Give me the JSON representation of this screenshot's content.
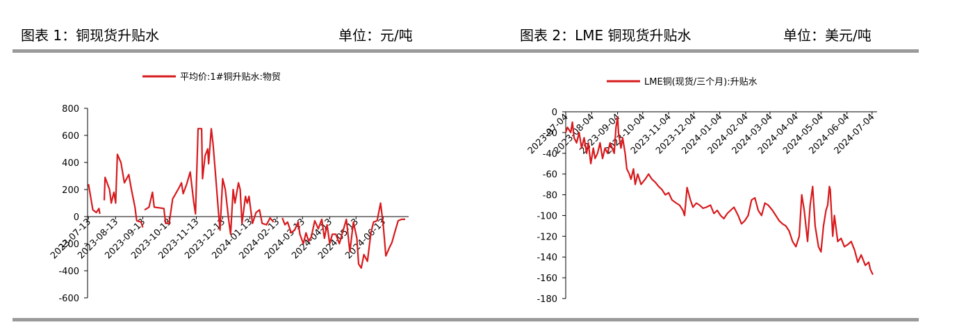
{
  "chart_data": [
    {
      "type": "line",
      "title": "图表 1：铜现货升贴水",
      "unit": "单位：元/吨",
      "legend": "top",
      "xlim": [
        "2023-07-12",
        "2024-07-12"
      ],
      "xticks": [
        "2023-07-13",
        "2023-08-13",
        "2023-09-13",
        "2023-10-13",
        "2023-11-13",
        "2023-12-13",
        "2024-01-13",
        "2024-02-13",
        "2024-03-13",
        "2024-04-13",
        "2024-05-13",
        "2024-06-13"
      ],
      "ylim": [
        -600,
        800
      ],
      "yticks": [
        800,
        600,
        400,
        200,
        0,
        -200,
        -400,
        -600
      ],
      "x": [
        "2023-07-13",
        "2023-07-18",
        "2023-07-22",
        "2023-07-25",
        "2023-07-26",
        "2023-07-28",
        "2023-07-31",
        "2023-08-01",
        "2023-08-06",
        "2023-08-08",
        "2023-08-11",
        "2023-08-13",
        "2023-08-15",
        "2023-08-19",
        "2023-08-23",
        "2023-08-28",
        "2023-08-31",
        "2023-09-04",
        "2023-09-06",
        "2023-09-11",
        "2023-09-13",
        "2023-09-14",
        "2023-09-15",
        "2023-09-20",
        "2023-09-24",
        "2023-09-26",
        "2023-10-07",
        "2023-10-09",
        "2023-10-13",
        "2023-10-17",
        "2023-10-24",
        "2023-10-27",
        "2023-10-29",
        "2023-11-02",
        "2023-11-06",
        "2023-11-10",
        "2023-11-12",
        "2023-11-15",
        "2023-11-19",
        "2023-11-20",
        "2023-11-23",
        "2023-11-26",
        "2023-11-27",
        "2023-11-30",
        "2023-12-02",
        "2023-12-05",
        "2023-12-08",
        "2023-12-10",
        "2023-12-13",
        "2023-12-16",
        "2023-12-20",
        "2023-12-22",
        "2023-12-25",
        "2023-12-27",
        "2023-12-31",
        "2024-01-02",
        "2024-01-04",
        "2024-01-08",
        "2024-01-10",
        "2024-01-12",
        "2024-01-14",
        "2024-01-16",
        "2024-01-20",
        "2024-01-24",
        "2024-01-27",
        "2024-02-01",
        "2024-02-05",
        "2024-02-09",
        "2024-02-14",
        "2024-02-19",
        "2024-02-22",
        "2024-02-25",
        "2024-02-29",
        "2024-03-04",
        "2024-03-08",
        "2024-03-10",
        "2024-03-14",
        "2024-03-17",
        "2024-03-20",
        "2024-03-23",
        "2024-03-27",
        "2024-03-31",
        "2024-04-04",
        "2024-04-07",
        "2024-04-10",
        "2024-04-13",
        "2024-04-16",
        "2024-04-20",
        "2024-04-24",
        "2024-04-28",
        "2024-05-02",
        "2024-05-06",
        "2024-05-10",
        "2024-05-14",
        "2024-05-16",
        "2024-05-19",
        "2024-05-22",
        "2024-05-26",
        "2024-05-30",
        "2024-06-02",
        "2024-06-06",
        "2024-06-10",
        "2024-06-13",
        "2024-06-16",
        "2024-06-20",
        "2024-06-23",
        "2024-06-26",
        "2024-06-30",
        "2024-07-04",
        "2024-07-08"
      ],
      "series": [
        {
          "name": "平均价:1#铜升贴水:物贸",
          "color": "#d7191c",
          "values": [
            240,
            50,
            30,
            60,
            20,
            null,
            120,
            290,
            200,
            100,
            180,
            100,
            460,
            400,
            250,
            310,
            200,
            70,
            -30,
            -40,
            -80,
            null,
            50,
            70,
            180,
            70,
            60,
            -50,
            -50,
            130,
            210,
            250,
            170,
            240,
            330,
            110,
            20,
            650,
            650,
            280,
            450,
            500,
            390,
            650,
            540,
            300,
            50,
            -100,
            280,
            200,
            -30,
            -130,
            200,
            100,
            250,
            200,
            -50,
            150,
            100,
            150,
            50,
            -50,
            30,
            50,
            -50,
            -60,
            -10,
            -40,
            null,
            -10,
            -60,
            -40,
            -120,
            -100,
            -40,
            -130,
            -200,
            -120,
            -180,
            -150,
            -30,
            -90,
            -20,
            -160,
            -60,
            -200,
            -130,
            -130,
            -200,
            -110,
            -20,
            -260,
            -40,
            -160,
            -350,
            -380,
            -280,
            -330,
            -120,
            -40,
            -30,
            100,
            -60,
            -290,
            -230,
            -190,
            -120,
            -30,
            -20,
            -20
          ]
        }
      ]
    },
    {
      "type": "line",
      "title": "图表 2：LME 铜现货升贴水",
      "unit": "单位：美元/吨",
      "legend": "top",
      "xlim": [
        "2023-07-04",
        "2024-07-10"
      ],
      "xticks": [
        "2023-07-04",
        "2023-08-04",
        "2023-09-04",
        "2023-10-04",
        "2023-11-04",
        "2023-12-04",
        "2024-01-04",
        "2024-02-04",
        "2024-03-04",
        "2024-04-04",
        "2024-05-04",
        "2024-06-04",
        "2024-07-04"
      ],
      "ylim": [
        -180,
        0
      ],
      "yticks": [
        0,
        -20,
        -40,
        -60,
        -80,
        -100,
        -120,
        -140,
        -160,
        -180
      ],
      "x": [
        "2023-07-04",
        "2023-07-06",
        "2023-07-10",
        "2023-07-12",
        "2023-07-14",
        "2023-07-17",
        "2023-07-20",
        "2023-07-23",
        "2023-07-26",
        "2023-07-29",
        "2023-07-31",
        "2023-08-03",
        "2023-08-06",
        "2023-08-08",
        "2023-08-11",
        "2023-08-14",
        "2023-08-17",
        "2023-08-20",
        "2023-08-23",
        "2023-08-26",
        "2023-08-31",
        "2023-09-02",
        "2023-09-04",
        "2023-09-05",
        "2023-09-08",
        "2023-09-10",
        "2023-09-13",
        "2023-09-15",
        "2023-09-18",
        "2023-09-20",
        "2023-09-23",
        "2023-09-25",
        "2023-09-28",
        "2023-10-02",
        "2023-10-07",
        "2023-10-11",
        "2023-10-15",
        "2023-10-19",
        "2023-10-23",
        "2023-10-27",
        "2023-10-31",
        "2023-11-04",
        "2023-11-08",
        "2023-11-13",
        "2023-11-17",
        "2023-11-21",
        "2023-11-23",
        "2023-11-26",
        "2023-11-30",
        "2023-12-03",
        "2023-12-07",
        "2023-12-11",
        "2023-12-15",
        "2023-12-19",
        "2023-12-24",
        "2023-12-28",
        "2024-01-01",
        "2024-01-05",
        "2024-01-09",
        "2024-01-13",
        "2024-01-17",
        "2024-01-21",
        "2024-01-26",
        "2024-01-30",
        "2024-02-03",
        "2024-02-07",
        "2024-02-11",
        "2024-02-15",
        "2024-02-19",
        "2024-02-23",
        "2024-02-27",
        "2024-03-02",
        "2024-03-07",
        "2024-03-11",
        "2024-03-15",
        "2024-03-19",
        "2024-03-23",
        "2024-03-27",
        "2024-03-31",
        "2024-04-04",
        "2024-04-08",
        "2024-04-11",
        "2024-04-14",
        "2024-04-18",
        "2024-04-21",
        "2024-04-24",
        "2024-04-27",
        "2024-05-01",
        "2024-05-04",
        "2024-05-07",
        "2024-05-10",
        "2024-05-12",
        "2024-05-14",
        "2024-05-15",
        "2024-05-18",
        "2024-05-20",
        "2024-05-24",
        "2024-05-28",
        "2024-06-01",
        "2024-06-05",
        "2024-06-09",
        "2024-06-13",
        "2024-06-17",
        "2024-06-21",
        "2024-06-26",
        "2024-06-30",
        "2024-07-02",
        "2024-07-05"
      ],
      "series": [
        {
          "name": "LME铜(现货/三个月):升贴水",
          "color": "#d7191c",
          "values": [
            -20,
            -15,
            -20,
            -10,
            -25,
            -30,
            -20,
            -35,
            -25,
            -40,
            -30,
            -50,
            -35,
            -45,
            -40,
            -30,
            -45,
            -35,
            -40,
            -30,
            -40,
            -15,
            -5,
            -20,
            -35,
            -25,
            -40,
            -55,
            -60,
            -65,
            -55,
            -70,
            -60,
            -70,
            -65,
            -60,
            -65,
            -68,
            -72,
            -75,
            -80,
            -78,
            -85,
            -88,
            -90,
            -95,
            -100,
            -73,
            -85,
            -92,
            -88,
            -90,
            -93,
            -92,
            -90,
            -98,
            -95,
            -100,
            -103,
            -98,
            -95,
            -92,
            -100,
            -108,
            -105,
            -100,
            -85,
            -83,
            -95,
            -100,
            -88,
            -90,
            -95,
            -100,
            -105,
            -108,
            -110,
            -115,
            -125,
            -130,
            -120,
            -80,
            -95,
            -125,
            -90,
            -72,
            -110,
            -130,
            -135,
            -110,
            -95,
            -90,
            -72,
            -75,
            -120,
            -100,
            -125,
            -122,
            -130,
            -128,
            -125,
            -133,
            -145,
            -138,
            -148,
            -145,
            -152,
            -157
          ]
        }
      ]
    }
  ]
}
